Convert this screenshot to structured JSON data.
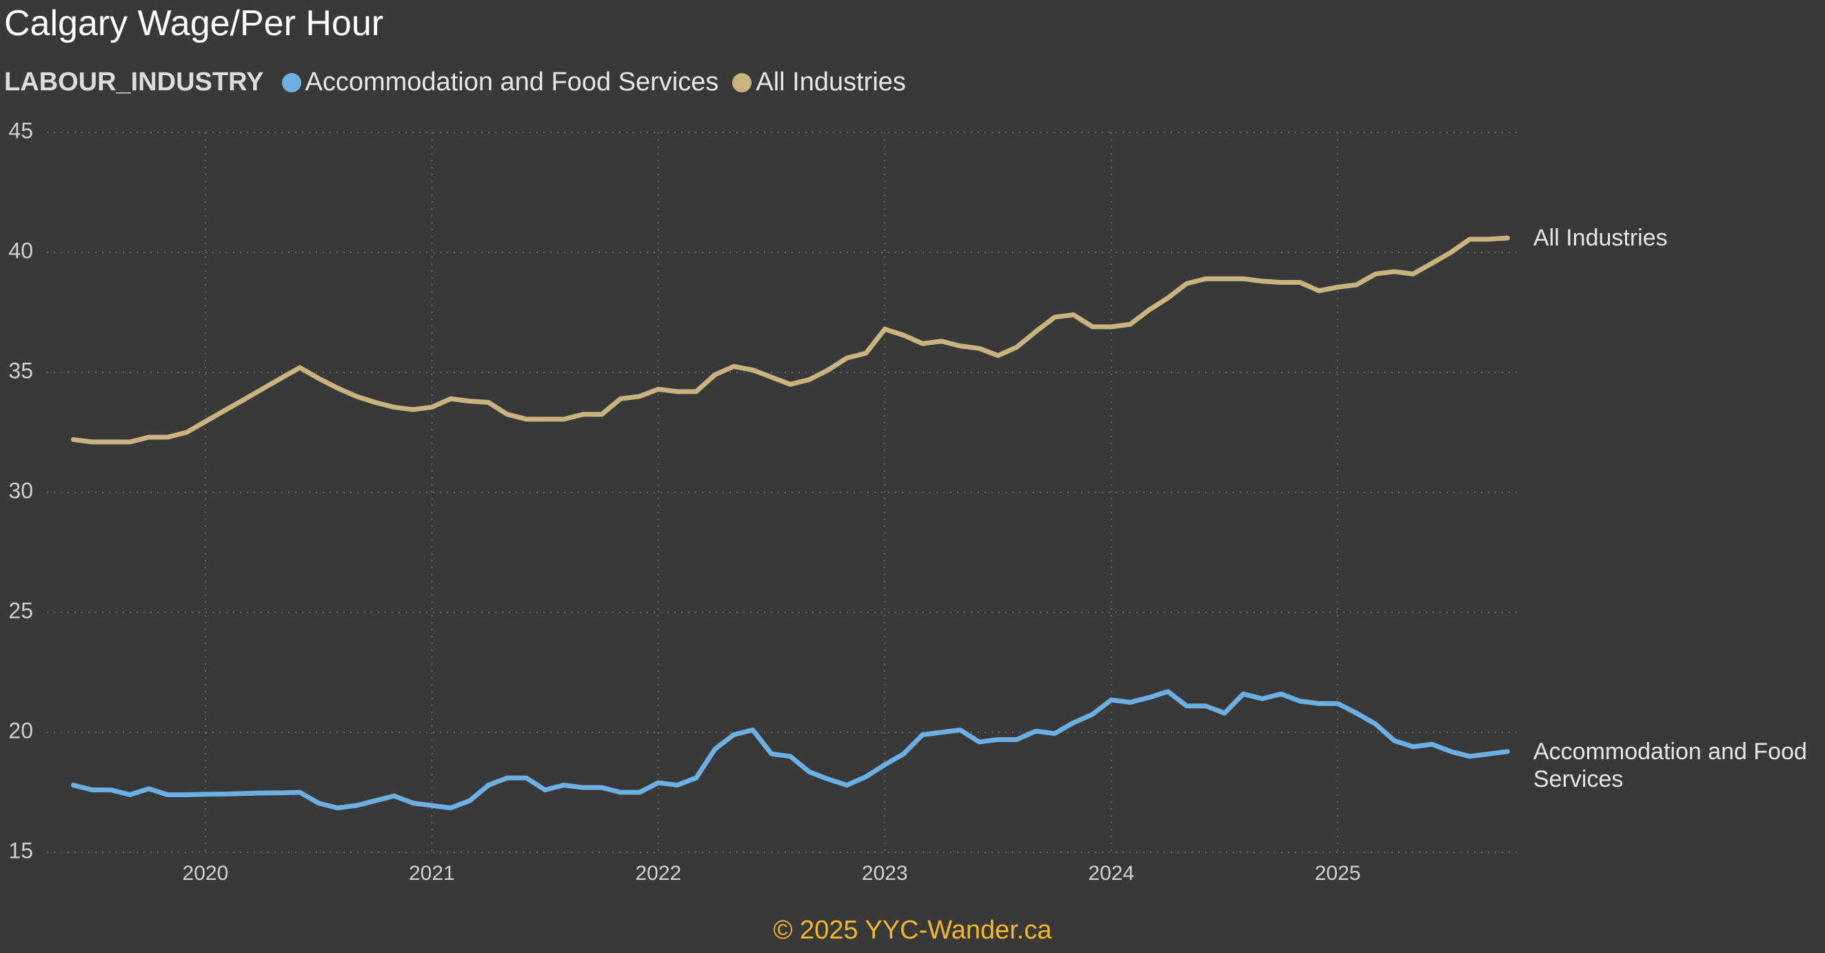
{
  "chart_data": {
    "type": "line",
    "title": "Calgary Wage/Per Hour",
    "legend_title": "LABOUR_INDUSTRY",
    "legend_position": "top-left",
    "footer": "© 2025 YYC-Wander.ca",
    "grid": true,
    "end_labels": true,
    "x": [
      2019.417,
      2019.5,
      2019.583,
      2019.667,
      2019.75,
      2019.833,
      2019.917,
      2020.0,
      2020.083,
      2020.167,
      2020.25,
      2020.333,
      2020.417,
      2020.5,
      2020.583,
      2020.667,
      2020.75,
      2020.833,
      2020.917,
      2021.0,
      2021.083,
      2021.167,
      2021.25,
      2021.333,
      2021.417,
      2021.5,
      2021.583,
      2021.667,
      2021.75,
      2021.833,
      2021.917,
      2022.0,
      2022.083,
      2022.167,
      2022.25,
      2022.333,
      2022.417,
      2022.5,
      2022.583,
      2022.667,
      2022.75,
      2022.833,
      2022.917,
      2023.0,
      2023.083,
      2023.167,
      2023.25,
      2023.333,
      2023.417,
      2023.5,
      2023.583,
      2023.667,
      2023.75,
      2023.833,
      2023.917,
      2024.0,
      2024.083,
      2024.167,
      2024.25,
      2024.333,
      2024.417,
      2024.5,
      2024.583,
      2024.667,
      2024.75,
      2024.833,
      2024.917,
      2025.0,
      2025.083,
      2025.167,
      2025.25,
      2025.333,
      2025.417,
      2025.5,
      2025.583,
      2025.667,
      2025.75
    ],
    "series": [
      {
        "name": "Accommodation and Food Services",
        "color": "#6cb0e3",
        "values": [
          17.8,
          17.6,
          17.6,
          17.4,
          17.65,
          17.4,
          17.4,
          17.42,
          17.43,
          17.45,
          17.47,
          17.48,
          17.5,
          17.05,
          16.85,
          16.95,
          17.15,
          17.35,
          17.05,
          16.95,
          16.85,
          17.15,
          17.8,
          18.1,
          18.1,
          17.6,
          17.8,
          17.7,
          17.7,
          17.5,
          17.5,
          17.9,
          17.8,
          18.1,
          19.3,
          19.9,
          20.1,
          19.1,
          19.0,
          18.35,
          18.05,
          17.8,
          18.15,
          18.65,
          19.1,
          19.9,
          20.0,
          20.1,
          19.6,
          19.7,
          19.7,
          20.05,
          19.95,
          20.4,
          20.75,
          21.35,
          21.25,
          21.45,
          21.7,
          21.1,
          21.1,
          20.8,
          21.6,
          21.4,
          21.6,
          21.3,
          21.2,
          21.2,
          20.8,
          20.35,
          19.65,
          19.4,
          19.5,
          19.2,
          19.0,
          19.1,
          19.2
        ]
      },
      {
        "name": "All Industries",
        "color": "#c9b37f",
        "values": [
          32.2,
          32.1,
          32.1,
          32.1,
          32.3,
          32.3,
          32.5,
          32.95,
          33.4,
          33.85,
          34.3,
          34.75,
          35.2,
          34.75,
          34.35,
          34.0,
          33.75,
          33.55,
          33.45,
          33.55,
          33.9,
          33.8,
          33.75,
          33.25,
          33.05,
          33.05,
          33.05,
          33.25,
          33.25,
          33.9,
          34.0,
          34.3,
          34.2,
          34.2,
          34.9,
          35.25,
          35.1,
          34.8,
          34.5,
          34.7,
          35.1,
          35.6,
          35.8,
          36.8,
          36.55,
          36.2,
          36.3,
          36.1,
          36.0,
          35.7,
          36.05,
          36.7,
          37.3,
          37.4,
          36.9,
          36.9,
          37.0,
          37.6,
          38.1,
          38.7,
          38.9,
          38.9,
          38.9,
          38.8,
          38.75,
          38.75,
          38.4,
          38.55,
          38.65,
          39.1,
          39.2,
          39.1,
          39.55,
          40.0,
          40.55,
          40.55,
          40.6
        ]
      }
    ],
    "xlim": [
      2019.3,
      2025.8
    ],
    "xticks": [
      2020,
      2021,
      2022,
      2023,
      2024,
      2025
    ],
    "ylim": [
      15,
      45
    ],
    "yticks": [
      15,
      20,
      25,
      30,
      35,
      40,
      45
    ]
  }
}
